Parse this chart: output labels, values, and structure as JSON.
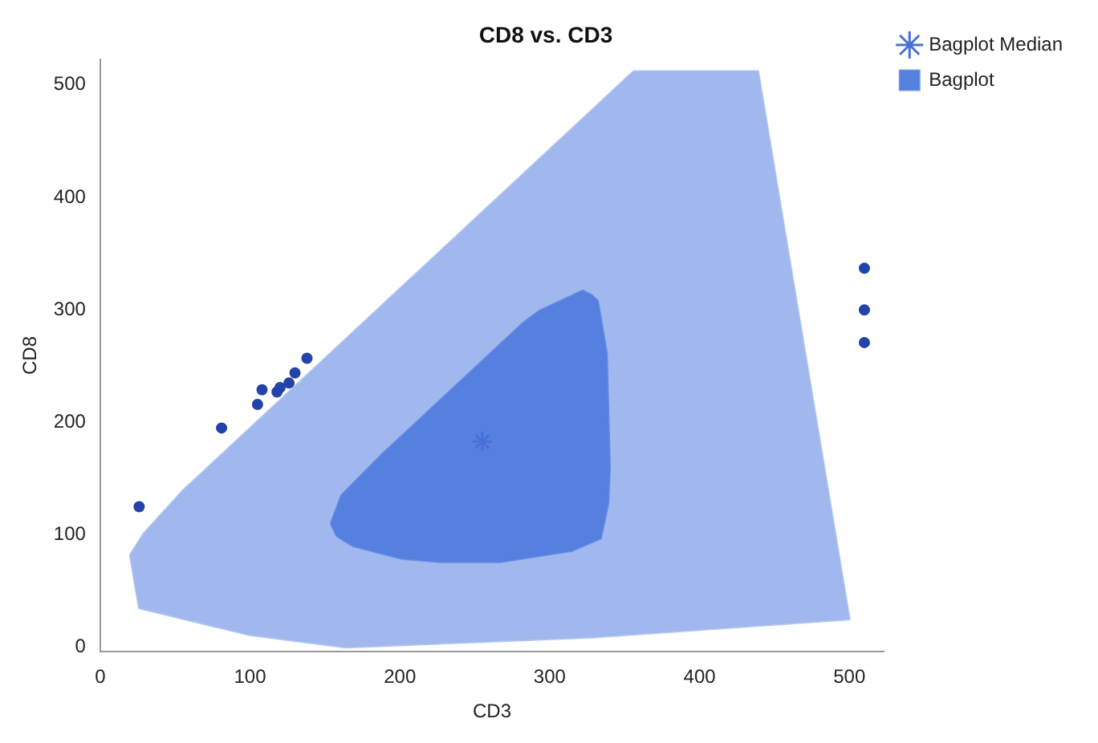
{
  "chart_data": {
    "type": "scatter",
    "title": "CD8 vs. CD3",
    "xlabel": "CD3",
    "ylabel": "CD8",
    "series": [
      {
        "type": "area",
        "color": "#a0b8ee",
        "x": [
          20,
          29,
          55,
          356,
          439,
          500,
          328,
          164,
          100,
          26
        ],
        "values": [
          82,
          101,
          139,
          512,
          512,
          25,
          9,
          0,
          11,
          35
        ]
      },
      {
        "type": "area",
        "name": "Bagplot",
        "color": "#5580e0",
        "x": [
          154,
          158,
          169,
          201,
          227,
          267,
          315,
          334,
          339,
          340,
          338,
          332,
          328,
          322,
          314,
          293,
          282,
          187,
          161
        ],
        "values": [
          110,
          99,
          90,
          79,
          76,
          76,
          86,
          97,
          128,
          160,
          261,
          308,
          313,
          317,
          312,
          299,
          288,
          170,
          135
        ]
      },
      {
        "type": "scatter",
        "name": "Bagplot Median",
        "color": "#4a6fd8",
        "marker": "cross",
        "x": [
          255
        ],
        "values": [
          183
        ]
      },
      {
        "type": "scatter",
        "color": "#2244aa",
        "marker": "circle",
        "x": [
          26,
          81,
          105,
          108,
          118,
          120,
          126,
          130,
          138,
          510,
          510,
          510
        ],
        "values": [
          125,
          195,
          216,
          229,
          227,
          231,
          235,
          244,
          257,
          337,
          300,
          271
        ]
      }
    ],
    "xlim": [
      0,
      523
    ],
    "ylim": [
      -4,
      523
    ],
    "xticks": [
      0,
      100,
      200,
      300,
      400,
      500
    ],
    "yticks": [
      0,
      100,
      200,
      300,
      400,
      500
    ],
    "legend": "top right"
  }
}
